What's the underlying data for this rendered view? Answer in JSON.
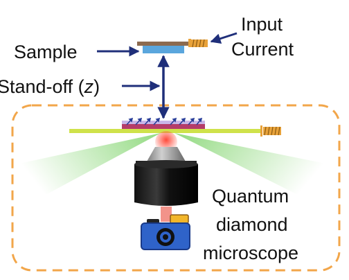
{
  "labels": {
    "sample": "Sample",
    "input_current_line1": "Input",
    "input_current_line2": "Current",
    "standoff_prefix": "Stand-off (",
    "standoff_var": "z",
    "standoff_suffix": ")",
    "qdm_line1": "Quantum",
    "qdm_line2": "diamond",
    "qdm_line3": "microscope"
  },
  "colors": {
    "arrow": "#1f2f7a",
    "dashed_border": "#f2a64a",
    "sample_holder": "#8c6a4f",
    "sample": "#5aa6dd",
    "diamond_plate": "#b43c6a",
    "diamond_top": "#c9b6e8",
    "laser_beam": "#cfe24a",
    "fluorescence": "#7ed36a",
    "red_laser": "#e83a2a",
    "objective_body": "#1b1b1b",
    "objective_tip": "#9a9a9a",
    "camera_body": "#2f63c9",
    "camera_accent": "#f2b62a",
    "wire_coil": "#e8a23a"
  }
}
